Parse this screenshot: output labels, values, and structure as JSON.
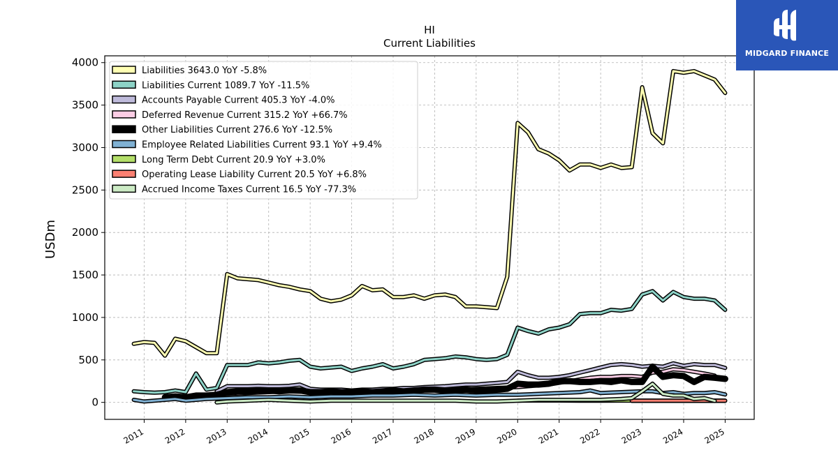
{
  "brand": {
    "name": "MIDGARD FINANCE",
    "logo_icon": "midgard-logo-icon",
    "color": "#2a56b8"
  },
  "chart_data": {
    "type": "line",
    "title": "HI",
    "subtitle": "Current  Liabilities",
    "ylabel": "USDm",
    "xlabel": "",
    "ylim": [
      -200,
      4080
    ],
    "xlim": [
      2010.05,
      2025.7
    ],
    "yticks": [
      0,
      500,
      1000,
      1500,
      2000,
      2500,
      3000,
      3500,
      4000
    ],
    "xticks": [
      "2011",
      "2012",
      "2013",
      "2014",
      "2015",
      "2016",
      "2017",
      "2018",
      "2019",
      "2020",
      "2021",
      "2022",
      "2023",
      "2024",
      "2025"
    ],
    "grid": true,
    "legend_position": "top-left",
    "series": [
      {
        "name": "Liabilities",
        "legend": "Liabilities  3643.0 YoY -5.8%",
        "color": "#ffffb3",
        "width": 3,
        "x": [
          2010.75,
          2011.0,
          2011.25,
          2011.5,
          2011.75,
          2012.0,
          2012.25,
          2012.5,
          2012.75,
          2013.0,
          2013.25,
          2013.5,
          2013.75,
          2014.0,
          2014.25,
          2014.5,
          2014.75,
          2015.0,
          2015.25,
          2015.5,
          2015.75,
          2016.0,
          2016.25,
          2016.5,
          2016.75,
          2017.0,
          2017.25,
          2017.5,
          2017.75,
          2018.0,
          2018.25,
          2018.5,
          2018.75,
          2019.0,
          2019.25,
          2019.5,
          2019.75,
          2020.0,
          2020.25,
          2020.5,
          2020.75,
          2021.0,
          2021.25,
          2021.5,
          2021.75,
          2022.0,
          2022.25,
          2022.5,
          2022.75,
          2023.0,
          2023.25,
          2023.5,
          2023.75,
          2024.0,
          2024.25,
          2024.5,
          2024.75,
          2025.0
        ],
        "y": [
          690,
          710,
          700,
          550,
          750,
          720,
          650,
          580,
          580,
          1510,
          1460,
          1450,
          1440,
          1410,
          1380,
          1360,
          1330,
          1310,
          1220,
          1190,
          1210,
          1260,
          1370,
          1320,
          1330,
          1240,
          1240,
          1260,
          1220,
          1260,
          1270,
          1240,
          1130,
          1130,
          1120,
          1110,
          1480,
          3290,
          3180,
          2980,
          2930,
          2850,
          2730,
          2800,
          2800,
          2760,
          2800,
          2760,
          2770,
          3710,
          3170,
          3050,
          3900,
          3880,
          3900,
          3850,
          3800,
          3643
        ]
      },
      {
        "name": "Liabilities Current",
        "legend": "Liabilities Current  1089.7 YoY -11.5%",
        "color": "#8dd3c7",
        "width": 3,
        "x": [
          2010.75,
          2011.0,
          2011.25,
          2011.5,
          2011.75,
          2012.0,
          2012.25,
          2012.5,
          2012.75,
          2013.0,
          2013.25,
          2013.5,
          2013.75,
          2014.0,
          2014.25,
          2014.5,
          2014.75,
          2015.0,
          2015.25,
          2015.5,
          2015.75,
          2016.0,
          2016.25,
          2016.5,
          2016.75,
          2017.0,
          2017.25,
          2017.5,
          2017.75,
          2018.0,
          2018.25,
          2018.5,
          2018.75,
          2019.0,
          2019.25,
          2019.5,
          2019.75,
          2020.0,
          2020.25,
          2020.5,
          2020.75,
          2021.0,
          2021.25,
          2021.5,
          2021.75,
          2022.0,
          2022.25,
          2022.5,
          2022.75,
          2023.0,
          2023.25,
          2023.5,
          2023.75,
          2024.0,
          2024.25,
          2024.5,
          2024.75,
          2025.0
        ],
        "y": [
          130,
          120,
          115,
          120,
          140,
          120,
          340,
          150,
          170,
          440,
          440,
          440,
          470,
          460,
          470,
          490,
          500,
          420,
          400,
          410,
          420,
          370,
          400,
          420,
          450,
          400,
          420,
          450,
          500,
          510,
          520,
          540,
          530,
          510,
          500,
          510,
          560,
          880,
          840,
          810,
          860,
          880,
          920,
          1040,
          1050,
          1050,
          1090,
          1080,
          1100,
          1270,
          1310,
          1200,
          1300,
          1240,
          1220,
          1220,
          1200,
          1089.7
        ]
      },
      {
        "name": "Accounts Payable Current",
        "legend": "Accounts Payable Current  405.3 YoY -4.0%",
        "color": "#bebada",
        "width": 3,
        "x": [
          2012.75,
          2013.0,
          2013.25,
          2013.5,
          2013.75,
          2014.0,
          2014.25,
          2014.5,
          2014.75,
          2015.0,
          2015.25,
          2015.5,
          2015.75,
          2016.0,
          2016.25,
          2016.5,
          2016.75,
          2017.0,
          2017.25,
          2017.5,
          2017.75,
          2018.0,
          2018.25,
          2018.5,
          2018.75,
          2019.0,
          2019.25,
          2019.5,
          2019.75,
          2020.0,
          2020.25,
          2020.5,
          2020.75,
          2021.0,
          2021.25,
          2021.5,
          2021.75,
          2022.0,
          2022.25,
          2022.5,
          2022.75,
          2023.0,
          2023.25,
          2023.5,
          2023.75,
          2024.0,
          2024.25,
          2024.5,
          2024.75,
          2025.0
        ],
        "y": [
          130,
          190,
          190,
          190,
          195,
          190,
          190,
          195,
          210,
          160,
          150,
          150,
          150,
          140,
          150,
          150,
          160,
          160,
          170,
          170,
          180,
          185,
          190,
          200,
          210,
          210,
          220,
          230,
          240,
          360,
          320,
          290,
          290,
          300,
          320,
          350,
          380,
          410,
          440,
          450,
          440,
          420,
          430,
          420,
          460,
          430,
          450,
          440,
          440,
          405.3
        ]
      },
      {
        "name": "Deferred Revenue Current",
        "legend": "Deferred Revenue Current  315.2 YoY +66.7%",
        "color": "#fccde5",
        "width": 3,
        "x": [
          2012.75,
          2013.0,
          2013.5,
          2014.0,
          2014.5,
          2015.0,
          2015.5,
          2016.0,
          2016.5,
          2017.0,
          2017.5,
          2018.0,
          2018.5,
          2019.0,
          2019.5,
          2020.0,
          2020.25,
          2020.5,
          2020.75,
          2021.0,
          2021.25,
          2021.5,
          2021.75,
          2022.0,
          2022.25,
          2022.5,
          2022.75,
          2023.0,
          2023.25,
          2023.5,
          2023.75,
          2024.0,
          2024.25,
          2024.5,
          2024.75
        ],
        "y": [
          80,
          100,
          110,
          120,
          130,
          120,
          120,
          120,
          120,
          130,
          140,
          150,
          150,
          160,
          170,
          180,
          190,
          200,
          210,
          230,
          250,
          270,
          290,
          300,
          300,
          310,
          310,
          300,
          350,
          360,
          390,
          380,
          360,
          340,
          315.2
        ]
      },
      {
        "name": "Other Liabilities Current",
        "legend": "Other Liabilities Current  276.6 YoY -12.5%",
        "color": "#000000",
        "width": 6,
        "x": [
          2011.5,
          2011.75,
          2012.0,
          2012.25,
          2012.5,
          2012.75,
          2013.0,
          2013.25,
          2013.5,
          2013.75,
          2014.0,
          2014.25,
          2014.5,
          2014.75,
          2015.0,
          2015.25,
          2015.5,
          2015.75,
          2016.0,
          2016.25,
          2016.5,
          2016.75,
          2017.0,
          2017.25,
          2017.5,
          2017.75,
          2018.0,
          2018.25,
          2018.5,
          2018.75,
          2019.0,
          2019.25,
          2019.5,
          2019.75,
          2020.0,
          2020.25,
          2020.5,
          2020.75,
          2021.0,
          2021.25,
          2021.5,
          2021.75,
          2022.0,
          2022.25,
          2022.5,
          2022.75,
          2023.0,
          2023.25,
          2023.5,
          2023.75,
          2024.0,
          2024.25,
          2024.5,
          2024.75,
          2025.0
        ],
        "y": [
          60,
          70,
          60,
          80,
          80,
          90,
          120,
          130,
          130,
          140,
          140,
          130,
          140,
          140,
          120,
          120,
          130,
          120,
          120,
          130,
          120,
          130,
          140,
          130,
          140,
          150,
          150,
          140,
          140,
          150,
          140,
          140,
          150,
          160,
          220,
          210,
          210,
          220,
          250,
          250,
          240,
          240,
          250,
          240,
          260,
          240,
          240,
          420,
          300,
          320,
          310,
          240,
          300,
          290,
          276.6
        ]
      },
      {
        "name": "Employee Related Liabilities Current",
        "legend": "Employee Related Liabilities Current  93.1 YoY +9.4%",
        "color": "#80b1d3",
        "width": 3,
        "x": [
          2010.75,
          2011.0,
          2011.5,
          2011.75,
          2012.0,
          2012.5,
          2013.0,
          2013.5,
          2014.0,
          2014.5,
          2015.0,
          2015.5,
          2016.0,
          2016.5,
          2017.0,
          2017.5,
          2018.0,
          2018.5,
          2019.0,
          2019.5,
          2020.0,
          2020.5,
          2021.0,
          2021.5,
          2021.75,
          2022.0,
          2022.5,
          2023.0,
          2023.25,
          2023.5,
          2023.75,
          2024.0,
          2024.25,
          2024.5,
          2024.75,
          2025.0
        ],
        "y": [
          30,
          10,
          30,
          40,
          20,
          40,
          50,
          60,
          60,
          70,
          60,
          70,
          70,
          80,
          80,
          90,
          80,
          90,
          80,
          90,
          90,
          100,
          110,
          120,
          140,
          110,
          120,
          130,
          130,
          110,
          120,
          100,
          110,
          110,
          120,
          93.1
        ]
      },
      {
        "name": "Long Term Debt Current",
        "legend": "Long Term Debt Current  20.9 YoY +3.0%",
        "color": "#b3de69",
        "width": 3,
        "x": [
          2020.0,
          2020.5,
          2021.0,
          2021.5,
          2022.0,
          2022.5,
          2023.0,
          2023.5,
          2024.0,
          2024.5,
          2025.0
        ],
        "y": [
          20,
          22,
          22,
          20,
          20,
          21,
          21,
          20,
          20,
          20,
          20.9
        ]
      },
      {
        "name": "Operating Lease Liability Current",
        "legend": "Operating Lease Liability Current  20.5 YoY +6.8%",
        "color": "#fb8072",
        "width": 3,
        "fill": true,
        "x": [
          2022.75,
          2023.0,
          2023.25,
          2023.5,
          2023.75,
          2024.0,
          2024.25,
          2024.5,
          2024.75,
          2025.0
        ],
        "y": [
          20,
          20,
          20,
          20,
          20,
          20,
          20,
          20,
          20,
          20.5
        ]
      },
      {
        "name": "Accrued Income Taxes Current",
        "legend": "Accrued Income Taxes Current  16.5 YoY -77.3%",
        "color": "#ccebc5",
        "width": 3,
        "x": [
          2012.75,
          2013.0,
          2013.5,
          2014.0,
          2014.5,
          2015.0,
          2015.5,
          2016.0,
          2016.5,
          2017.0,
          2017.5,
          2018.0,
          2018.5,
          2019.0,
          2019.5,
          2020.0,
          2020.5,
          2021.0,
          2021.5,
          2022.0,
          2022.5,
          2022.75,
          2023.0,
          2023.25,
          2023.5,
          2023.75,
          2024.0,
          2024.25,
          2024.5,
          2024.75
        ],
        "y": [
          0,
          10,
          20,
          30,
          20,
          10,
          20,
          20,
          20,
          20,
          20,
          20,
          20,
          10,
          10,
          20,
          30,
          30,
          30,
          30,
          40,
          50,
          130,
          220,
          100,
          80,
          80,
          40,
          50,
          16.5
        ]
      }
    ]
  }
}
